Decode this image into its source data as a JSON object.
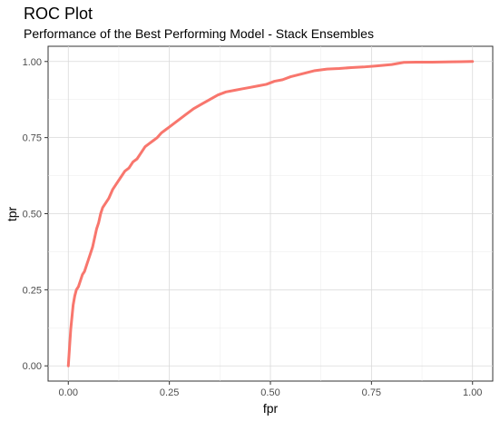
{
  "chart_data": {
    "type": "line",
    "title": "ROC Plot",
    "subtitle": "Performance of the Best Performing Model - Stack Ensembles",
    "xlabel": "fpr",
    "ylabel": "tpr",
    "xlim": [
      -0.05,
      1.05
    ],
    "ylim": [
      -0.05,
      1.05
    ],
    "x_ticks": [
      0.0,
      0.25,
      0.5,
      0.75,
      1.0
    ],
    "x_tick_labels": [
      "0.00",
      "0.25",
      "0.50",
      "0.75",
      "1.00"
    ],
    "y_ticks": [
      0.0,
      0.25,
      0.5,
      0.75,
      1.0
    ],
    "y_tick_labels": [
      "0.00",
      "0.25",
      "0.50",
      "0.75",
      "1.00"
    ],
    "grid": true,
    "line_color": "#F8766D",
    "series": [
      {
        "x": [
          0.0,
          0.003,
          0.006,
          0.009,
          0.012,
          0.016,
          0.02,
          0.025,
          0.03,
          0.035,
          0.04,
          0.045,
          0.05,
          0.055,
          0.06,
          0.065,
          0.07,
          0.075,
          0.08,
          0.085,
          0.09,
          0.1,
          0.11,
          0.12,
          0.13,
          0.14,
          0.15,
          0.16,
          0.17,
          0.18,
          0.19,
          0.2,
          0.21,
          0.22,
          0.23,
          0.24,
          0.25,
          0.27,
          0.29,
          0.31,
          0.33,
          0.35,
          0.37,
          0.39,
          0.41,
          0.43,
          0.45,
          0.47,
          0.49,
          0.51,
          0.53,
          0.55,
          0.58,
          0.61,
          0.64,
          0.67,
          0.7,
          0.73,
          0.76,
          0.8,
          0.83,
          0.86,
          0.9,
          0.95,
          1.0
        ],
        "y": [
          0.0,
          0.06,
          0.12,
          0.16,
          0.2,
          0.23,
          0.25,
          0.26,
          0.28,
          0.3,
          0.31,
          0.33,
          0.35,
          0.37,
          0.39,
          0.42,
          0.45,
          0.47,
          0.5,
          0.52,
          0.53,
          0.55,
          0.58,
          0.6,
          0.62,
          0.64,
          0.65,
          0.67,
          0.68,
          0.7,
          0.72,
          0.73,
          0.74,
          0.75,
          0.765,
          0.775,
          0.785,
          0.805,
          0.825,
          0.845,
          0.86,
          0.875,
          0.89,
          0.9,
          0.905,
          0.91,
          0.915,
          0.92,
          0.925,
          0.935,
          0.94,
          0.95,
          0.96,
          0.97,
          0.975,
          0.977,
          0.98,
          0.982,
          0.985,
          0.99,
          0.997,
          0.998,
          0.998,
          0.999,
          1.0
        ]
      }
    ]
  }
}
